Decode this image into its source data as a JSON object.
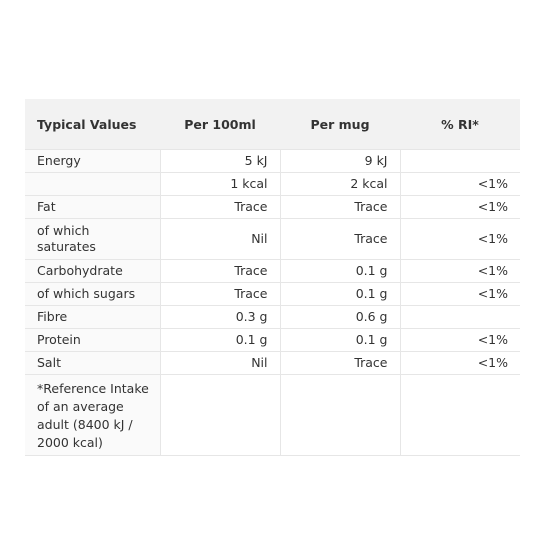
{
  "table": {
    "headers": [
      "Typical Values",
      "Per 100ml",
      "Per mug",
      "% RI*"
    ],
    "rows": [
      {
        "label": "Energy",
        "per100": "5 kJ",
        "permug": "9 kJ",
        "ri": ""
      },
      {
        "label": "",
        "per100": "1 kcal",
        "permug": "2 kcal",
        "ri": "<1%"
      },
      {
        "label": "Fat",
        "per100": "Trace",
        "permug": "Trace",
        "ri": "<1%"
      },
      {
        "label": "of which saturates",
        "per100": "Nil",
        "permug": "Trace",
        "ri": "<1%"
      },
      {
        "label": "Carbohydrate",
        "per100": "Trace",
        "permug": "0.1 g",
        "ri": "<1%"
      },
      {
        "label": "of which sugars",
        "per100": "Trace",
        "permug": "0.1 g",
        "ri": "<1%"
      },
      {
        "label": "Fibre",
        "per100": "0.3 g",
        "permug": "0.6 g",
        "ri": ""
      },
      {
        "label": "Protein",
        "per100": "0.1 g",
        "permug": "0.1 g",
        "ri": "<1%"
      },
      {
        "label": "Salt",
        "per100": "Nil",
        "permug": "Trace",
        "ri": "<1%"
      }
    ],
    "footnote": "*Reference Intake of an average adult (8400 kJ / 2000 kcal)"
  }
}
